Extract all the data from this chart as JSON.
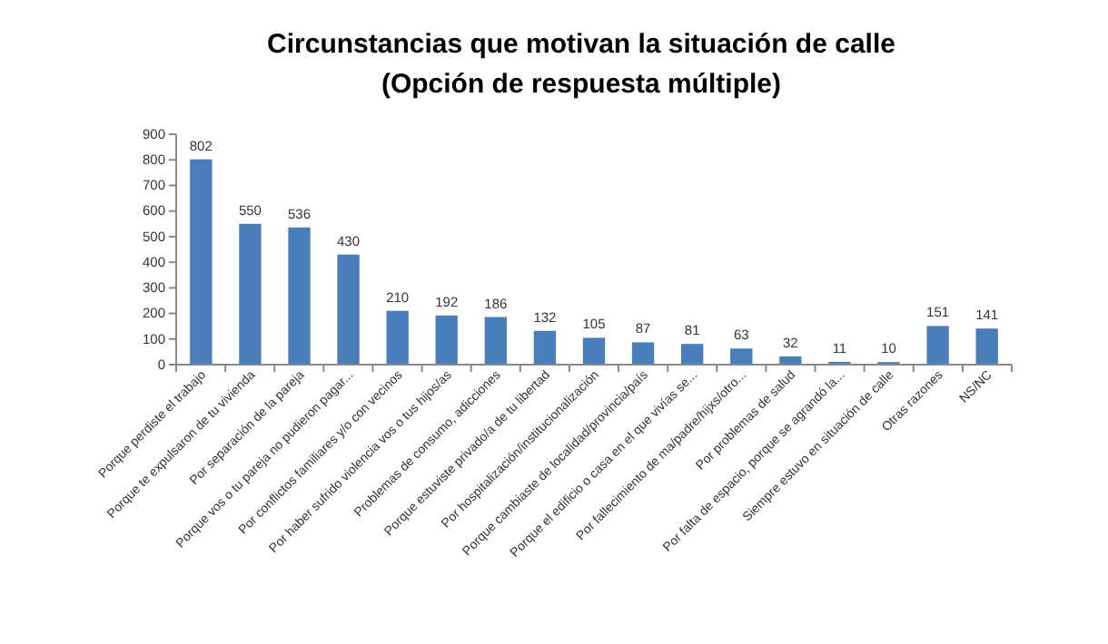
{
  "chart_data": {
    "type": "bar",
    "title": "Circunstancias que motivan la situación de calle",
    "subtitle": "(Opción de respuesta múltiple)",
    "categories": [
      "Porque perdiste el trabajo",
      "Porque te expulsaron de tu vivienda",
      "Por separación de la pareja",
      "Porque vos o tu pareja no pudieron pagar...",
      "Por conflictos familiares y/o con vecinos",
      "Por haber sufrido violencia vos o tus hijos/as",
      "Problemas de consumo, adicciones",
      "Porque estuviste privado/a de tu libertad",
      "Por hospitalización/institucionalización",
      "Porque cambiaste de localidad/provincia/país",
      "Porque el edificio o casa en el que vivías se...",
      "Por fallecimiento de ma/padre/hijxs/otro...",
      "Por problemas de salud",
      "Por falta de espacio, porque se agrandó la...",
      "Siempre estuvo en situación de calle",
      "Otras razones",
      "NS/NC"
    ],
    "values": [
      802,
      550,
      536,
      430,
      210,
      192,
      186,
      132,
      105,
      87,
      81,
      63,
      32,
      11,
      10,
      151,
      141
    ],
    "color": "#4a7ebb",
    "ylim": [
      0,
      900
    ],
    "yticks": [
      0,
      100,
      200,
      300,
      400,
      500,
      600,
      700,
      800,
      900
    ],
    "data_labels": true
  }
}
